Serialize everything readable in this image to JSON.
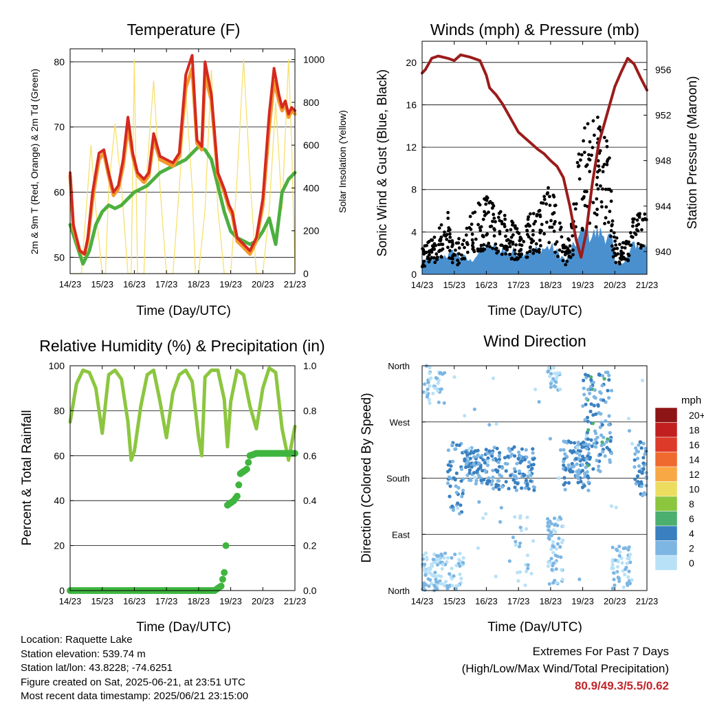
{
  "x_ticks": [
    "14/23",
    "15/23",
    "16/23",
    "17/23",
    "18/23",
    "19/23",
    "20/23",
    "21/23"
  ],
  "xlabel": "Time (Day/UTC)",
  "colors": {
    "temp2m": "#d42a20",
    "temp9m": "#f29a2e",
    "dewpoint": "#4daf3f",
    "solar": "#f7e06a",
    "wind": "#4a90cf",
    "gust": "#000000",
    "pressure": "#9b1c1c",
    "rh": "#8cc63f",
    "precip": "#3fb53f",
    "extremes": "#c0252a"
  },
  "chart_data": [
    {
      "type": "line",
      "title": "Temperature (F)",
      "xlabel": "Time (Day/UTC)",
      "ylabel": "2m & 9m T (Red, Orange) & 2m Td (Green)",
      "ylabel_right": "Solar Insolation (Yellow)",
      "x_ticks": [
        "14/23",
        "15/23",
        "16/23",
        "17/23",
        "18/23",
        "19/23",
        "20/23",
        "21/23"
      ],
      "ylim": [
        47.5,
        82
      ],
      "yticks": [
        50,
        60,
        70,
        80
      ],
      "ylim_right": [
        0,
        1050
      ],
      "yticks_right": [
        0,
        200,
        400,
        600,
        800,
        1000
      ],
      "series": [
        {
          "x": [
            0,
            0.1,
            0.3,
            0.45,
            0.55,
            0.7,
            0.9,
            1.05,
            1.2,
            1.35,
            1.5,
            1.65,
            1.8,
            1.95,
            2.1,
            2.3,
            2.45,
            2.6,
            2.8,
            3.0,
            3.2,
            3.4,
            3.6,
            3.8,
            3.95,
            4.1,
            4.2,
            4.4,
            4.6,
            4.8,
            4.95,
            5.05,
            5.2,
            5.4,
            5.6,
            5.8,
            6.0,
            6.2,
            6.35,
            6.5,
            6.6,
            6.7,
            6.8,
            6.9,
            7.0
          ],
          "y": [
            63,
            55,
            51,
            50.5,
            53,
            60,
            66,
            66.5,
            63,
            60,
            61,
            65,
            71.5,
            66,
            63,
            62,
            63,
            69,
            65.5,
            65,
            64.5,
            66,
            78,
            81,
            68,
            67,
            80,
            75,
            63,
            60.5,
            58,
            57,
            53,
            52,
            51,
            53,
            59,
            72,
            79,
            75,
            73,
            74,
            72,
            73,
            72.5
          ]
        },
        {
          "x": [
            0,
            0.1,
            0.3,
            0.45,
            0.55,
            0.7,
            0.9,
            1.05,
            1.2,
            1.35,
            1.5,
            1.65,
            1.8,
            1.95,
            2.1,
            2.3,
            2.45,
            2.6,
            2.8,
            3.0,
            3.2,
            3.4,
            3.6,
            3.8,
            3.95,
            4.1,
            4.2,
            4.4,
            4.6,
            4.8,
            4.95,
            5.05,
            5.2,
            5.4,
            5.6,
            5.8,
            6.0,
            6.2,
            6.35,
            6.5,
            6.6,
            6.7,
            6.8,
            6.9,
            7.0
          ],
          "y": [
            62.5,
            54.5,
            51,
            50.5,
            52.5,
            59,
            65,
            66,
            62.5,
            59.5,
            60.5,
            64,
            70,
            65.5,
            62.5,
            61.5,
            62.5,
            68,
            65,
            64.5,
            64,
            65.5,
            76,
            79,
            67.5,
            66.5,
            78,
            74,
            62.5,
            60,
            57.5,
            56.5,
            52.5,
            51.5,
            50.5,
            52.5,
            58,
            70,
            77,
            74,
            72.5,
            73.5,
            71.5,
            72.5,
            72
          ]
        },
        {
          "x": [
            0,
            0.2,
            0.4,
            0.6,
            0.8,
            1.0,
            1.2,
            1.4,
            1.6,
            1.8,
            2.0,
            2.2,
            2.4,
            2.6,
            2.8,
            3.0,
            3.2,
            3.4,
            3.6,
            3.8,
            4.0,
            4.2,
            4.4,
            4.6,
            4.8,
            5.0,
            5.2,
            5.4,
            5.6,
            5.8,
            6.0,
            6.2,
            6.4,
            6.6,
            6.8,
            7.0
          ],
          "y": [
            55,
            52,
            49,
            51,
            55,
            57,
            58,
            57.5,
            58,
            59,
            60,
            60.5,
            61,
            62,
            63,
            63.5,
            64,
            64.5,
            65,
            66,
            67,
            66.5,
            65,
            61,
            57,
            54,
            53,
            52.5,
            52,
            52.5,
            54,
            56,
            52,
            60,
            62,
            63
          ]
        },
        {
          "x": [
            0,
            0.35,
            0.5,
            0.65,
            0.8,
            1.0,
            1.1,
            1.2,
            1.4,
            1.6,
            1.8,
            1.9,
            2.0,
            2.1,
            2.2,
            2.3,
            2.4,
            2.6,
            2.8,
            3.0,
            3.2,
            3.4,
            3.6,
            3.8,
            3.9,
            4.0,
            4.2,
            4.4,
            4.6,
            4.8,
            4.9,
            5.0,
            5.2,
            5.4,
            5.6,
            5.8,
            5.9,
            6.0,
            6.2,
            6.4,
            6.6,
            6.8,
            6.9,
            7.0
          ],
          "y": [
            0,
            0,
            300,
            600,
            300,
            0,
            0,
            400,
            700,
            400,
            0,
            0,
            1000,
            0,
            0,
            0,
            500,
            900,
            400,
            0,
            0,
            400,
            850,
            400,
            0,
            0,
            300,
            950,
            300,
            0,
            0,
            0,
            450,
            1000,
            450,
            0,
            0,
            0,
            300,
            800,
            300,
            1000,
            600,
            0
          ]
        }
      ]
    },
    {
      "type": "scatter",
      "title": "Winds (mph) & Pressure (mb)",
      "xlabel": "Time (Day/UTC)",
      "ylabel": "Sonic Wind & Gust (Blue, Black)",
      "ylabel_right": "Station Pressure (Maroon)",
      "x_ticks": [
        "14/23",
        "15/23",
        "16/23",
        "17/23",
        "18/23",
        "19/23",
        "20/23",
        "21/23"
      ],
      "ylim": [
        0,
        22
      ],
      "yticks": [
        0,
        4,
        8,
        12,
        16,
        20
      ],
      "ylim_right": [
        938,
        958.5
      ],
      "yticks_right": [
        940,
        944,
        948,
        952,
        956
      ],
      "pressure": {
        "x": [
          0,
          0.1,
          0.3,
          0.5,
          0.8,
          1.0,
          1.2,
          1.5,
          1.8,
          2.0,
          2.1,
          2.3,
          2.5,
          2.8,
          3.0,
          3.2,
          3.4,
          3.6,
          3.8,
          4.0,
          4.2,
          4.4,
          4.6,
          4.8,
          4.95,
          5.1,
          5.3,
          5.5,
          5.8,
          6.0,
          6.2,
          6.4,
          6.6,
          6.8,
          7.0
        ],
        "y": [
          955.7,
          956,
          957,
          957.2,
          957,
          956.8,
          957.3,
          957.1,
          956.8,
          955.5,
          954.4,
          953.8,
          953,
          951.5,
          950.5,
          950,
          949.5,
          949,
          948.6,
          948,
          947.5,
          946.5,
          944,
          941,
          939.5,
          941.5,
          946,
          949.5,
          952.5,
          954.5,
          955.8,
          957,
          956.5,
          955.3,
          954.2
        ]
      }
    },
    {
      "type": "line",
      "title": "Relative Humidity (%) & Precipitation (in)",
      "xlabel": "Time (Day/UTC)",
      "ylabel": "Percent & Total Rainfall",
      "x_ticks": [
        "14/23",
        "15/23",
        "16/23",
        "17/23",
        "18/23",
        "19/23",
        "20/23",
        "21/23"
      ],
      "ylim": [
        0,
        100
      ],
      "yticks": [
        0,
        20,
        40,
        60,
        80,
        100
      ],
      "ylim_right": [
        0,
        1.0
      ],
      "yticks_right": [
        0.0,
        0.2,
        0.4,
        0.6,
        0.8,
        1.0
      ],
      "series": [
        {
          "x": [
            0,
            0.2,
            0.4,
            0.6,
            0.8,
            1.0,
            1.2,
            1.4,
            1.6,
            1.8,
            1.9,
            2.0,
            2.2,
            2.4,
            2.6,
            2.8,
            3.0,
            3.2,
            3.4,
            3.6,
            3.8,
            4.0,
            4.1,
            4.2,
            4.4,
            4.6,
            4.8,
            4.9,
            5.0,
            5.2,
            5.4,
            5.6,
            5.8,
            6.0,
            6.2,
            6.4,
            6.6,
            6.8,
            7.0
          ],
          "y": [
            75,
            92,
            98,
            97,
            90,
            70,
            96,
            98,
            94,
            75,
            58,
            62,
            82,
            96,
            98,
            84,
            68,
            88,
            96,
            98,
            93,
            68,
            60,
            95,
            98,
            98,
            85,
            64,
            84,
            98,
            96,
            82,
            72,
            90,
            99,
            97,
            72,
            58,
            73
          ]
        },
        {
          "x": [
            0,
            0.5,
            1.0,
            1.5,
            2.0,
            2.5,
            3.0,
            3.5,
            4.0,
            4.5,
            4.7,
            4.75,
            4.8,
            4.85,
            4.9,
            5.0,
            5.1,
            5.2,
            5.3,
            5.4,
            5.5,
            5.6,
            5.8,
            6.0,
            6.2,
            6.4,
            6.6,
            6.8,
            7.0
          ],
          "y": [
            0,
            0,
            0,
            0,
            0,
            0,
            0,
            0,
            0,
            0,
            0.02,
            0.05,
            0.08,
            0.2,
            0.38,
            0.39,
            0.4,
            0.42,
            0.52,
            0.53,
            0.54,
            0.6,
            0.61,
            0.61,
            0.61,
            0.61,
            0.61,
            0.61,
            0.61
          ]
        }
      ]
    },
    {
      "type": "scatter",
      "title": "Wind Direction",
      "xlabel": "Time (Day/UTC)",
      "ylabel": "Direction (Colored By Speed)",
      "x_ticks": [
        "14/23",
        "15/23",
        "16/23",
        "17/23",
        "18/23",
        "19/23",
        "20/23",
        "21/23"
      ],
      "y_categories": [
        "North",
        "East",
        "South",
        "West",
        "North"
      ],
      "legend": {
        "title": "mph",
        "labels": [
          "20+",
          "18",
          "16",
          "14",
          "12",
          "10",
          "8",
          "6",
          "4",
          "2",
          "0"
        ],
        "colors": [
          "#8e1515",
          "#c22020",
          "#dd3a2a",
          "#ef6a2e",
          "#f8a844",
          "#ecdd60",
          "#8cc63f",
          "#4daf6f",
          "#3a80c0",
          "#7db6e3",
          "#b8e1f7"
        ]
      }
    }
  ],
  "info": {
    "location": "Location: Raquette Lake",
    "elevation": "Station elevation: 539.74 m",
    "latlon": "Station lat/lon: 43.8228; -74.6251",
    "created": "Figure created on Sat, 2025-06-21, at 23:51 UTC",
    "recent": "Most recent data timestamp: 2025/06/21 23:15:00"
  },
  "extremes": {
    "title": "Extremes For Past 7 Days",
    "subtitle": "(High/Low/Max Wind/Total Precipitation)",
    "values": "80.9/49.3/5.5/0.62"
  }
}
